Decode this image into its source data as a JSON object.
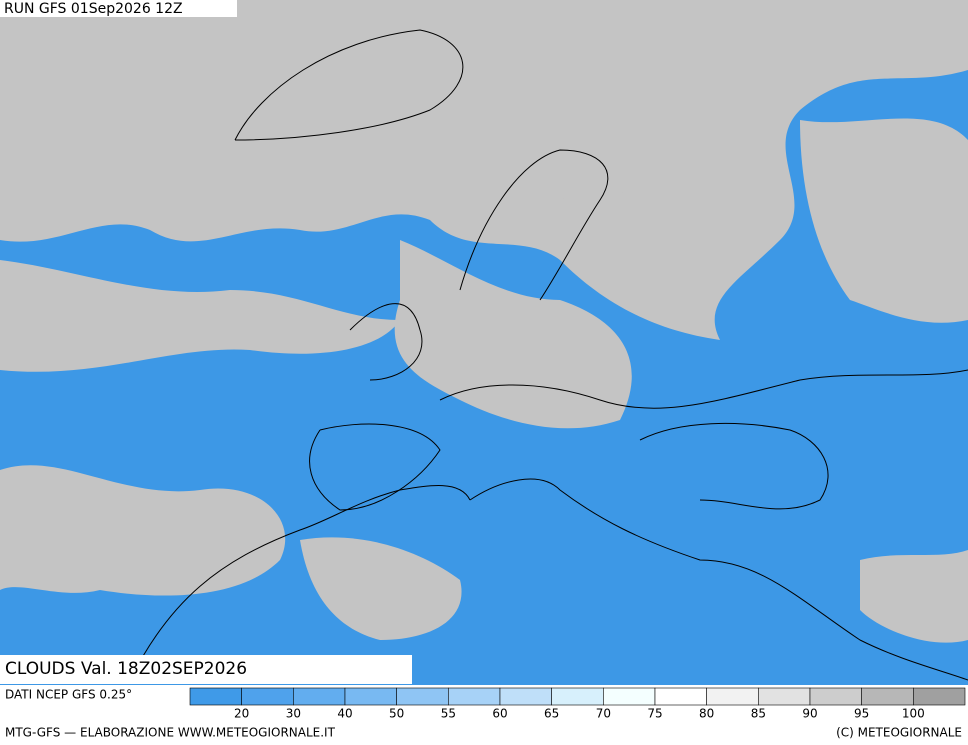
{
  "header": {
    "run": "RUN GFS 01Sep2026 12Z",
    "field": "CLOUDS Val. 18Z02SEP2026"
  },
  "legend": {
    "source": "DATI NCEP GFS 0.25°",
    "ticks": [
      20,
      30,
      40,
      50,
      55,
      60,
      65,
      70,
      75,
      80,
      85,
      90,
      95,
      100
    ],
    "colors": [
      "#3f9ae8",
      "#4fa2ec",
      "#62adef",
      "#78b9f2",
      "#8fc5f4",
      "#a7d2f7",
      "#bfdff9",
      "#d7f0fc",
      "#f4ffff",
      "#ffffff",
      "#f2f2f2",
      "#e2e2e2",
      "#cdcdcd",
      "#b7b7b7",
      "#a0a0a0"
    ]
  },
  "footer": {
    "left": "MTG-GFS — ELABORAZIONE WWW.METEOGIORNALE.IT",
    "right": "(C) METEOGIORNALE"
  }
}
